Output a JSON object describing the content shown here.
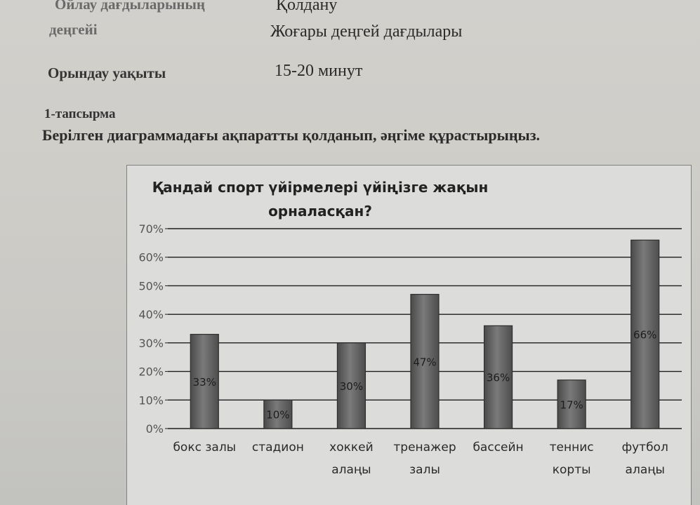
{
  "header": {
    "thinking_level_label": [
      "Ойлау дағдыларының",
      "деңгейі"
    ],
    "thinking_level_value": [
      "Қолдану",
      "Жоғары деңгей дағдылары"
    ],
    "time_label": "Орындау уақыты",
    "time_value": "15-20 минут"
  },
  "task": {
    "number": "1-тапсырма",
    "text": "Берілген диаграммадағы ақпаратты қолданып, әңгіме құрастырыңыз."
  },
  "colors": {
    "bar": "#5e5e5e",
    "gridline": "#1e1e1e"
  },
  "chart_data": {
    "type": "bar",
    "title": [
      "Қандай спорт үйірмелері үйіңізге жақын",
      "орналасқан?"
    ],
    "categories": [
      [
        "бокс залы"
      ],
      [
        "стадион"
      ],
      [
        "хоккей",
        "алаңы"
      ],
      [
        "тренажер",
        "залы"
      ],
      [
        "бассейн"
      ],
      [
        "теннис",
        "корты"
      ],
      [
        "футбол",
        "алаңы"
      ]
    ],
    "values": [
      33,
      10,
      30,
      47,
      36,
      17,
      66
    ],
    "data_labels": [
      "33%",
      "10%",
      "30%",
      "47%",
      "36%",
      "17%",
      "66%"
    ],
    "yticks": [
      "0%",
      "10%",
      "20%",
      "30%",
      "40%",
      "50%",
      "60%",
      "70%"
    ],
    "ylim": [
      0,
      70
    ],
    "grid": true,
    "legend": "none"
  }
}
